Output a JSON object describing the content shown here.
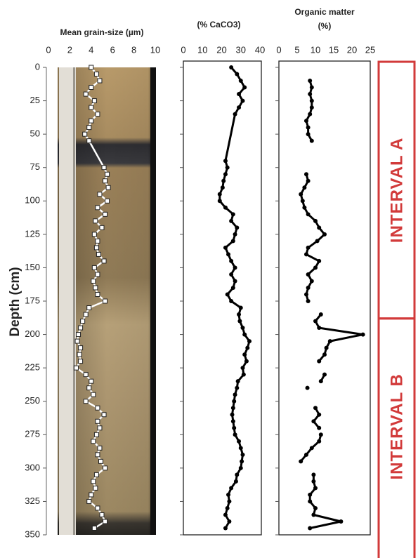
{
  "chart_data": [
    {
      "type": "line",
      "xlabel": "Mean grain-size (µm)",
      "ylabel": "Depth (cm)",
      "xlim": [
        0,
        10
      ],
      "xticks": [
        0,
        2,
        4,
        6,
        8,
        10
      ],
      "ylim": [
        0,
        350
      ],
      "yticks": [
        0,
        25,
        50,
        75,
        100,
        125,
        150,
        175,
        200,
        225,
        250,
        275,
        300,
        325,
        350
      ],
      "show_ytick_labels": true,
      "color": "#ffffff",
      "marker": "square",
      "depth": [
        0,
        5,
        10,
        15,
        20,
        25,
        30,
        35,
        40,
        45,
        50,
        55,
        75,
        80,
        85,
        90,
        95,
        100,
        105,
        110,
        115,
        120,
        125,
        130,
        135,
        140,
        145,
        150,
        155,
        160,
        165,
        170,
        175,
        180,
        185,
        190,
        195,
        200,
        205,
        210,
        215,
        220,
        225,
        230,
        235,
        240,
        245,
        250,
        255,
        260,
        265,
        270,
        275,
        280,
        285,
        290,
        295,
        300,
        305,
        310,
        315,
        320,
        325,
        330,
        335,
        340,
        345
      ],
      "values": [
        4,
        4.5,
        4.8,
        4,
        3.5,
        4.3,
        4,
        4.6,
        4,
        3.8,
        3.4,
        3.8,
        5.2,
        5.5,
        5.3,
        5.6,
        4.8,
        5.5,
        4.6,
        5.3,
        4.4,
        5,
        4.3,
        4.6,
        4.5,
        4.7,
        5.2,
        4.3,
        4.6,
        4.2,
        4.4,
        4.6,
        5.3,
        3.8,
        3.5,
        3.2,
        3.0,
        2.8,
        2.7,
        3,
        2.9,
        3,
        2.6,
        3.5,
        4,
        3.8,
        4.2,
        3.5,
        4.6,
        5.2,
        4.6,
        4.8,
        4.5,
        4.2,
        4.8,
        4.6,
        4.9,
        5.3,
        4.5,
        4.2,
        4.4,
        4.0,
        3.8,
        4.6,
        5,
        5.3,
        4.3
      ]
    },
    {
      "type": "line",
      "xlabel": "(% CaCO3)",
      "xlim": [
        0,
        40
      ],
      "xticks": [
        0,
        10,
        20,
        30,
        40
      ],
      "ylim": [
        0,
        350
      ],
      "yticks": [
        0,
        25,
        50,
        75,
        100,
        125,
        150,
        175,
        200,
        225,
        250,
        275,
        300,
        325,
        350
      ],
      "show_ytick_labels": false,
      "color": "#000000",
      "marker": "circle",
      "depth": [
        0,
        5,
        10,
        15,
        20,
        25,
        30,
        35,
        70,
        75,
        80,
        85,
        90,
        95,
        100,
        105,
        110,
        115,
        120,
        125,
        130,
        135,
        140,
        145,
        150,
        155,
        160,
        165,
        170,
        175,
        180,
        185,
        190,
        195,
        200,
        205,
        210,
        215,
        220,
        225,
        230,
        235,
        240,
        245,
        250,
        255,
        260,
        265,
        270,
        275,
        280,
        285,
        290,
        295,
        300,
        305,
        310,
        315,
        320,
        325,
        330,
        335,
        340,
        345
      ],
      "values": [
        25,
        28,
        30,
        32,
        29,
        31,
        29,
        27,
        22,
        23,
        22,
        21,
        20.5,
        19,
        19,
        22,
        26,
        25,
        28,
        27,
        26,
        22,
        23.5,
        25,
        27,
        25,
        27,
        26,
        23,
        25,
        30,
        29,
        29.5,
        31,
        32,
        34.5,
        33.5,
        32,
        33,
        31,
        31.5,
        28.5,
        28,
        27,
        26.5,
        26,
        25.5,
        26,
        26.5,
        27,
        29,
        30,
        31,
        30.5,
        30,
        28,
        27.5,
        25,
        23.5,
        24,
        23,
        22,
        24,
        22
      ]
    },
    {
      "type": "line",
      "xlabel": [
        "Organic matter",
        "(%)"
      ],
      "xlim": [
        0,
        25
      ],
      "xticks": [
        0,
        5,
        10,
        15,
        20,
        25
      ],
      "ylim": [
        0,
        350
      ],
      "yticks": [
        0,
        25,
        50,
        75,
        100,
        125,
        150,
        175,
        200,
        225,
        250,
        275,
        300,
        325,
        350
      ],
      "show_ytick_labels": false,
      "color": "#000000",
      "marker": "circle",
      "depth": [
        10,
        15,
        20,
        25,
        30,
        35,
        40,
        45,
        50,
        55,
        null,
        80,
        85,
        90,
        95,
        100,
        105,
        110,
        115,
        120,
        125,
        130,
        135,
        140,
        145,
        150,
        155,
        160,
        165,
        170,
        175,
        null,
        185,
        190,
        195,
        200,
        205,
        210,
        215,
        220,
        null,
        230,
        235,
        null,
        240,
        null,
        255,
        260,
        265,
        270,
        null,
        275,
        280,
        285,
        290,
        295,
        null,
        305,
        310,
        315,
        320,
        325,
        330,
        335,
        340,
        345
      ],
      "values": [
        8.5,
        9,
        8.5,
        9,
        9,
        8.5,
        7.5,
        8,
        8,
        9,
        null,
        7.5,
        8,
        7,
        6,
        6.5,
        7,
        8,
        10,
        11,
        12.5,
        10.5,
        8,
        7.5,
        11,
        10,
        8,
        9,
        8,
        7.5,
        8,
        null,
        11.5,
        10,
        11,
        23,
        14,
        13,
        12.5,
        11,
        null,
        12.5,
        11.5,
        null,
        7.8,
        null,
        10,
        11,
        9.5,
        11,
        null,
        11.5,
        11,
        9,
        7.5,
        6,
        null,
        9.5,
        9.5,
        10,
        8.5,
        8.5,
        10,
        9.5,
        17,
        8.5
      ],
      "annotations": [
        {
          "text": "INTERVAL A",
          "from": 0,
          "to": 188
        },
        {
          "text": "INTERVAL B",
          "from": 188,
          "to": 350
        }
      ]
    }
  ]
}
